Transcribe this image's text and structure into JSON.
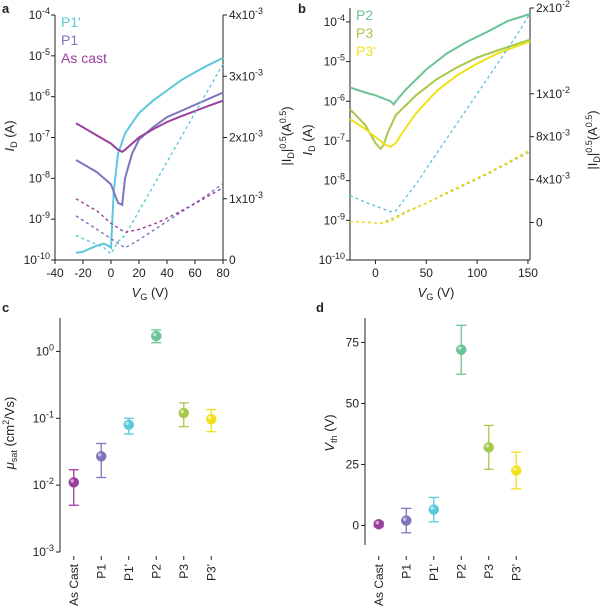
{
  "chart_data": [
    {
      "panel": "a",
      "type": "line",
      "title": "",
      "xlabel": "V_G (V)",
      "ylabel_left": "I_D (A)",
      "ylabel_right": "|I_D|^0.5 (A^0.5)",
      "xlim": [
        -40,
        80
      ],
      "xticks": [
        -40,
        -20,
        0,
        20,
        40,
        60,
        80
      ],
      "ylim_left_log10": [
        -10,
        -4
      ],
      "yticks_left": [
        {
          "exp": -4,
          "label": "-4"
        },
        {
          "exp": -5,
          "label": "-5"
        },
        {
          "exp": -6,
          "label": "-6"
        },
        {
          "exp": -7,
          "label": "-7"
        },
        {
          "exp": -8,
          "label": "-8"
        },
        {
          "exp": -9,
          "label": "-9"
        },
        {
          "exp": -10,
          "label": "-10"
        }
      ],
      "ylim_right": [
        0,
        0.004
      ],
      "yticks_right": [
        {
          "v": 0,
          "label": "0"
        },
        {
          "v": 0.001,
          "label": "1x10",
          "exp": "-3"
        },
        {
          "v": 0.002,
          "label": "2x10",
          "exp": "-3"
        },
        {
          "v": 0.003,
          "label": "3x10",
          "exp": "-3"
        },
        {
          "v": 0.004,
          "label": "4x10",
          "exp": "-3"
        }
      ],
      "legend": [
        "P1'",
        "P1",
        "As cast"
      ],
      "series": [
        {
          "name": "P1'",
          "color": "#5bc8dc",
          "axis": "left",
          "x": [
            -25,
            -20,
            -15,
            -10,
            -5,
            -2,
            0,
            2,
            5,
            10,
            20,
            30,
            40,
            50,
            60,
            70,
            80
          ],
          "log10_id": [
            -9.82,
            -9.8,
            -9.72,
            -9.65,
            -9.6,
            -9.65,
            -9.7,
            -8.3,
            -7.4,
            -6.9,
            -6.4,
            -6.1,
            -5.85,
            -5.6,
            -5.4,
            -5.22,
            -5.05
          ]
        },
        {
          "name": "P1",
          "color": "#7b76be",
          "axis": "left",
          "x": [
            -25,
            -20,
            -10,
            -5,
            0,
            5,
            8,
            10,
            15,
            20,
            30,
            40,
            50,
            60,
            70,
            80
          ],
          "log10_id": [
            -7.55,
            -7.65,
            -7.85,
            -8.0,
            -8.15,
            -8.6,
            -8.65,
            -8.0,
            -7.4,
            -7.05,
            -6.75,
            -6.5,
            -6.35,
            -6.2,
            -6.05,
            -5.9
          ]
        },
        {
          "name": "As cast",
          "color": "#9b3f9f",
          "axis": "left",
          "x": [
            -25,
            -20,
            -10,
            0,
            5,
            8,
            10,
            15,
            20,
            30,
            40,
            50,
            60,
            70,
            80
          ],
          "log10_id": [
            -6.65,
            -6.75,
            -6.95,
            -7.15,
            -7.3,
            -7.35,
            -7.3,
            -7.15,
            -7.0,
            -6.8,
            -6.62,
            -6.48,
            -6.35,
            -6.22,
            -6.1
          ]
        },
        {
          "name": "P1' sqrt",
          "color": "#5bc8dc",
          "axis": "right",
          "dashed": true,
          "x": [
            -25,
            -15,
            -5,
            0,
            5,
            10,
            20,
            30,
            40,
            50,
            60,
            70,
            80
          ],
          "sqrt_id": [
            0.0004,
            0.0003,
            0.0002,
            0.0001,
            0.0003,
            0.0004,
            0.0008,
            0.0012,
            0.0016,
            0.002,
            0.0024,
            0.0028,
            0.0032
          ]
        },
        {
          "name": "P1 sqrt",
          "color": "#7b76be",
          "axis": "right",
          "dashed": true,
          "x": [
            -25,
            -10,
            0,
            10,
            20,
            30,
            40,
            50,
            60,
            70,
            80
          ],
          "sqrt_id": [
            0.00072,
            0.0005,
            0.00035,
            0.0002,
            0.00033,
            0.00048,
            0.00063,
            0.00078,
            0.00093,
            0.00108,
            0.00125
          ]
        },
        {
          "name": "As cast sqrt",
          "color": "#9b3f9f",
          "axis": "right",
          "dashed": true,
          "x": [
            -25,
            -10,
            0,
            10,
            20,
            30,
            40,
            50,
            60,
            70,
            80
          ],
          "sqrt_id": [
            0.001,
            0.0008,
            0.0006,
            0.00045,
            0.0005,
            0.00058,
            0.00068,
            0.0008,
            0.00092,
            0.00105,
            0.00118
          ]
        }
      ]
    },
    {
      "panel": "b",
      "type": "line",
      "title": "",
      "xlabel": "V_G (V)",
      "ylabel_left": "I_D (A)",
      "ylabel_right": "|I_D|^0.5 (A^0.5)",
      "xlim": [
        -25,
        152
      ],
      "xticks": [
        0,
        50,
        100,
        150
      ],
      "ylim_left_log10": [
        -10,
        -3.65
      ],
      "yticks_left": [
        {
          "exp": -4,
          "label": "-4"
        },
        {
          "exp": -5,
          "label": "-5"
        },
        {
          "exp": -6,
          "label": "-6"
        },
        {
          "exp": -7,
          "label": "-7"
        },
        {
          "exp": -8,
          "label": "-8"
        },
        {
          "exp": -9,
          "label": "-9"
        },
        {
          "exp": -10,
          "label": "-10"
        }
      ],
      "ylim_right": [
        -0.0035,
        0.02
      ],
      "yticks_right": [
        {
          "v": 0,
          "label": "0"
        },
        {
          "v": 0.004,
          "label": "4x10",
          "exp": "-3"
        },
        {
          "v": 0.008,
          "label": "8x10",
          "exp": "-3"
        },
        {
          "v": 0.012,
          "label": "1x10",
          "exp": "-2"
        },
        {
          "v": 0.02,
          "label": "2x10",
          "exp": "-2"
        }
      ],
      "legend": [
        "P2",
        "P3",
        "P3'"
      ],
      "series": [
        {
          "name": "P2",
          "color": "#6bc494",
          "axis": "left",
          "x": [
            -25,
            -10,
            0,
            10,
            15,
            18,
            20,
            30,
            50,
            70,
            90,
            110,
            130,
            152
          ],
          "log10_id": [
            -5.65,
            -5.78,
            -5.85,
            -5.95,
            -6.0,
            -6.08,
            -6.0,
            -5.7,
            -5.2,
            -4.8,
            -4.5,
            -4.25,
            -3.98,
            -3.8
          ]
        },
        {
          "name": "P3",
          "color": "#a7c94a",
          "axis": "left",
          "x": [
            -25,
            -10,
            0,
            5,
            8,
            12,
            20,
            40,
            60,
            80,
            100,
            120,
            140,
            152
          ],
          "log10_id": [
            -6.2,
            -6.6,
            -7.05,
            -7.2,
            -7.1,
            -6.8,
            -6.35,
            -5.85,
            -5.45,
            -5.15,
            -4.9,
            -4.72,
            -4.55,
            -4.45
          ]
        },
        {
          "name": "P3'",
          "color": "#f2e11a",
          "axis": "left",
          "x": [
            -25,
            -10,
            0,
            5,
            10,
            15,
            20,
            25,
            40,
            60,
            80,
            100,
            120,
            140,
            152
          ],
          "log10_id": [
            -6.45,
            -6.7,
            -6.9,
            -7.0,
            -7.1,
            -7.15,
            -7.05,
            -6.85,
            -6.3,
            -5.75,
            -5.35,
            -5.05,
            -4.8,
            -4.6,
            -4.5
          ]
        },
        {
          "name": "P2 sqrt",
          "color": "#5bc8dc",
          "axis": "right",
          "dashed": true,
          "x": [
            -25,
            -5,
            15,
            20,
            40,
            60,
            80,
            100,
            120,
            140,
            152
          ],
          "sqrt_id": [
            0.0025,
            0.0017,
            0.001,
            0.0011,
            0.0036,
            0.0064,
            0.0092,
            0.012,
            0.0148,
            0.0176,
            0.0195
          ]
        },
        {
          "name": "P3 sqrt",
          "color": "#a7c94a",
          "axis": "right",
          "dashed": true,
          "x": [
            -25,
            -5,
            5,
            15,
            30,
            50,
            70,
            90,
            110,
            130,
            152
          ],
          "sqrt_id": [
            0.0001,
            0.0,
            -0.0001,
            0.0003,
            0.001,
            0.0018,
            0.0027,
            0.0036,
            0.0045,
            0.0055,
            0.0066
          ]
        },
        {
          "name": "P3' sqrt",
          "color": "#f2e11a",
          "axis": "right",
          "dashed": true,
          "x": [
            -25,
            -5,
            5,
            15,
            30,
            50,
            70,
            90,
            110,
            130,
            152
          ],
          "sqrt_id": [
            0.0001,
            0.0,
            -0.0001,
            0.0001,
            0.0009,
            0.0018,
            0.0028,
            0.0037,
            0.0046,
            0.0056,
            0.0068
          ]
        }
      ]
    },
    {
      "panel": "c",
      "type": "scatter",
      "title": "",
      "xlabel": "",
      "ylabel": "μ_sat (cm²/Vs)",
      "ylim_log10": [
        -3,
        0.5
      ],
      "yticks": [
        {
          "exp": 0,
          "label": "0"
        },
        {
          "exp": -1,
          "label": "-1"
        },
        {
          "exp": -2,
          "label": "-2"
        },
        {
          "exp": -3,
          "label": "-3"
        }
      ],
      "categories": [
        "As Cast",
        "P1",
        "P1'",
        "P2",
        "P3",
        "P3'"
      ],
      "colors": [
        "#9b3f9f",
        "#7b76be",
        "#5bc8dc",
        "#6bc494",
        "#a7c94a",
        "#f2e11a"
      ],
      "values": [
        0.011,
        0.027,
        0.08,
        1.7,
        0.12,
        0.097
      ],
      "err_low": [
        0.005,
        0.013,
        0.058,
        1.35,
        0.075,
        0.063
      ],
      "err_high": [
        0.017,
        0.042,
        0.1,
        2.1,
        0.17,
        0.135
      ]
    },
    {
      "panel": "d",
      "type": "scatter",
      "title": "",
      "xlabel": "",
      "ylabel": "V_th (V)",
      "ylim": [
        -8,
        85
      ],
      "yticks": [
        0,
        25,
        50,
        75
      ],
      "categories": [
        "As Cast",
        "P1",
        "P1'",
        "P2",
        "P3",
        "P3'"
      ],
      "colors": [
        "#9b3f9f",
        "#7b76be",
        "#5bc8dc",
        "#6bc494",
        "#a7c94a",
        "#f2e11a"
      ],
      "values": [
        0.5,
        2,
        6.5,
        72,
        32,
        22.5
      ],
      "err_low": [
        -0.5,
        -3,
        1.5,
        62,
        23,
        15
      ],
      "err_high": [
        1.5,
        7,
        11.5,
        82,
        41,
        30
      ]
    }
  ],
  "axis_texts": {
    "a_x": "V",
    "a_x_sub": "G",
    "a_x_unit": " (V)",
    "b_x": "V",
    "b_x_sub": "G",
    "b_x_unit": " (V)",
    "id": "I",
    "id_sub": "D",
    "id_unit": " (A)",
    "sqrt_open": "|I",
    "sqrt_sub": "D",
    "sqrt_mid": "|",
    "sqrt_sup": "0.5",
    "sqrt_unit": "(A",
    "sqrt_unit_sup": "0.5",
    "sqrt_close": ")",
    "mu": "μ",
    "mu_sub": "sat",
    "mu_unit": " (cm",
    "mu_sup": "2",
    "mu_tail": "/Vs)",
    "vth": "V",
    "vth_sub": "th",
    "vth_unit": " (V)",
    "ten": "10"
  },
  "panel_labels": {
    "a": "a",
    "b": "b",
    "c": "c",
    "d": "d"
  }
}
